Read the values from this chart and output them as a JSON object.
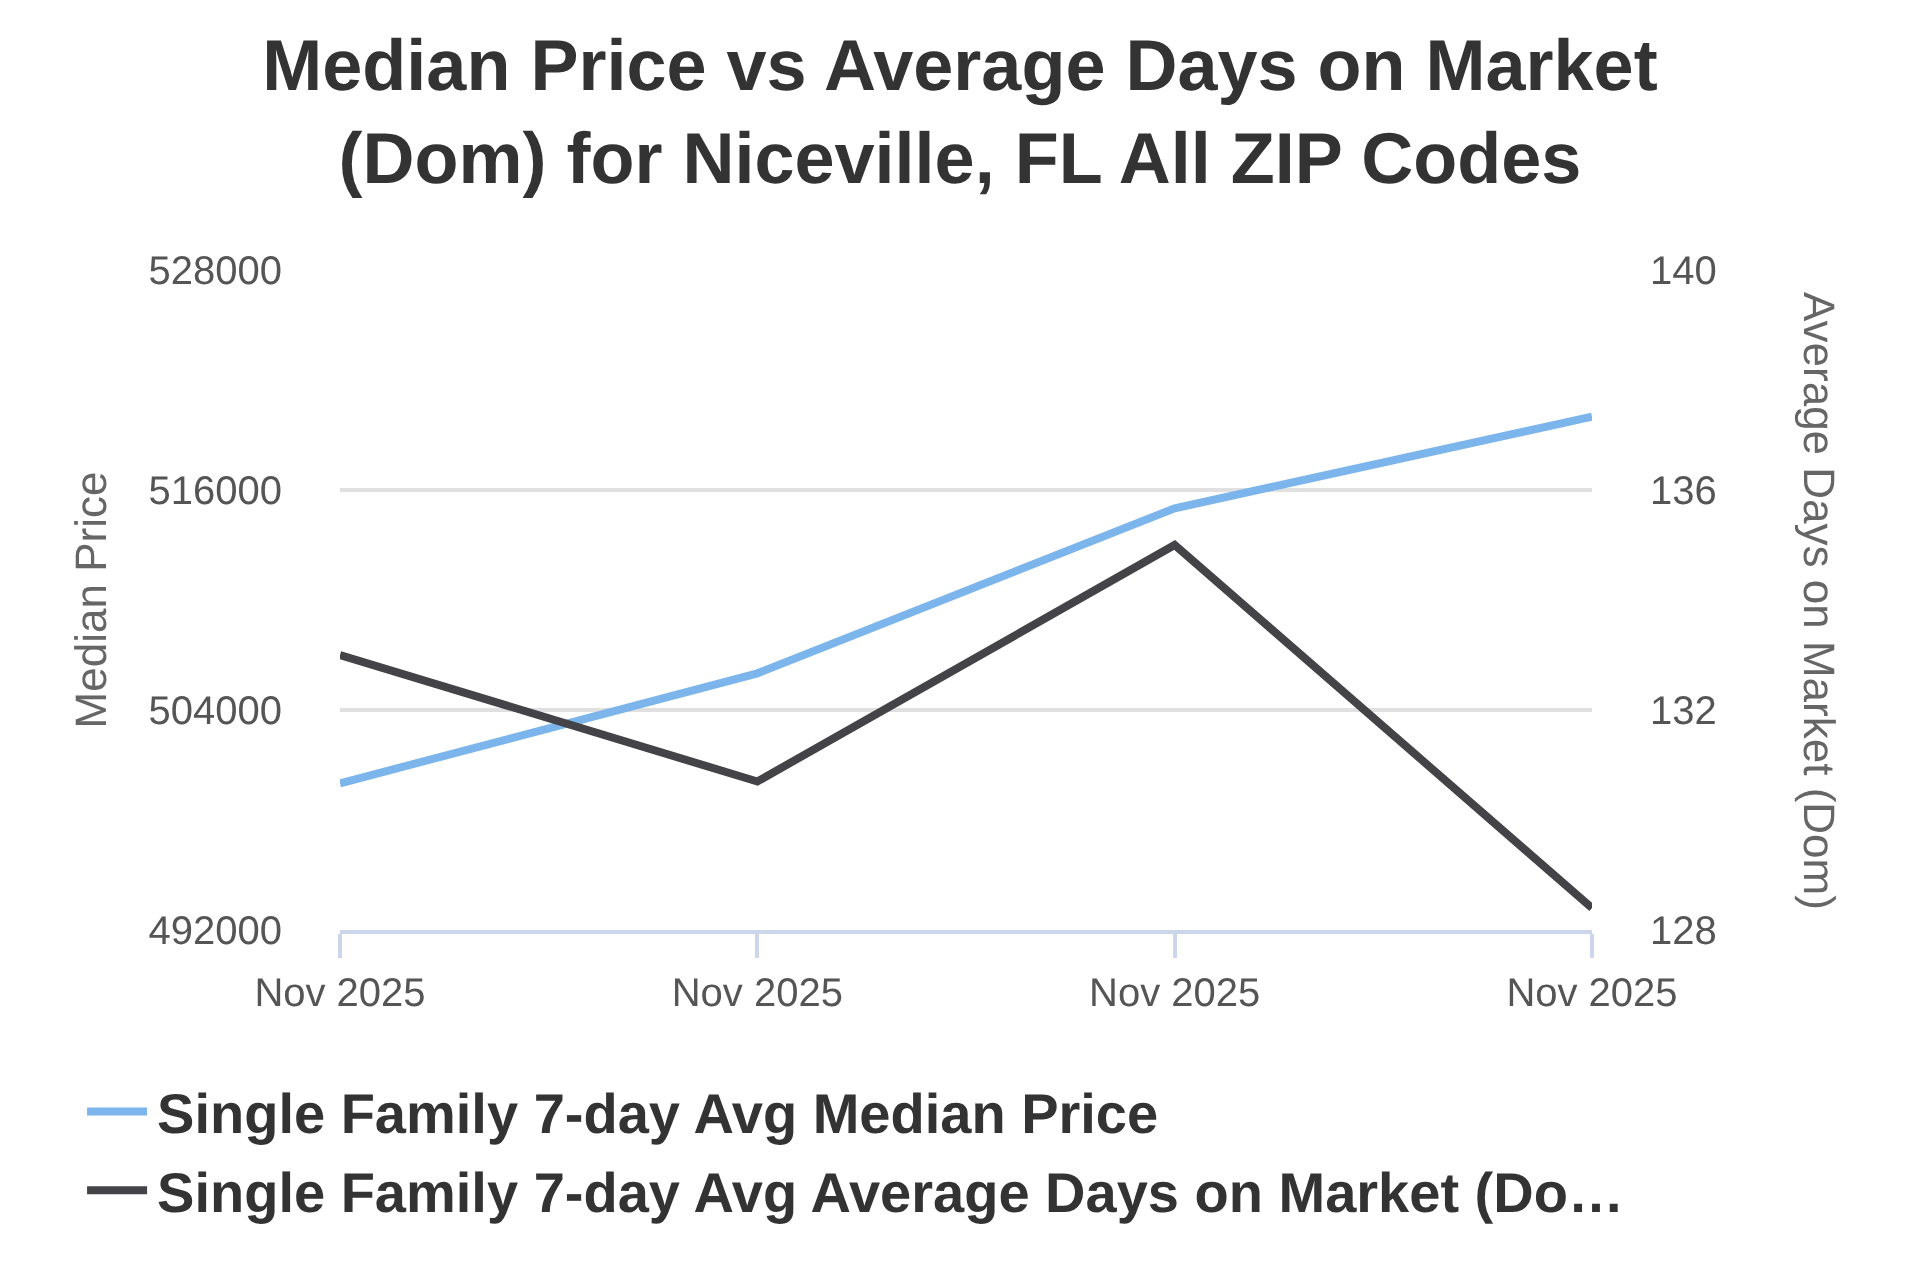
{
  "chart_data": {
    "type": "line",
    "title": "Median Price vs Average Days on Market (Dom) for Niceville, FL All ZIP Codes",
    "ylabel": "Median Price",
    "y2label": "Average Days on Market (Dom)",
    "categories": [
      "Nov 2025",
      "Nov 2025",
      "Nov 2025",
      "Nov 2025"
    ],
    "series": [
      {
        "name": "Single Family 7-day Avg Median Price",
        "color": "#7cb5ec",
        "values": [
          500000,
          506000,
          515000,
          520000
        ]
      },
      {
        "name": "Single Family 7-day Avg Average Days on Market (Do…",
        "color": "#434348",
        "values": [
          133,
          130.7,
          135,
          128.4
        ],
        "axis": "y2"
      }
    ],
    "ylim": [
      492000,
      528000
    ],
    "yticks": [
      492000,
      504000,
      516000,
      528000
    ],
    "y2lim": [
      128,
      140
    ],
    "y2ticks": [
      128,
      132,
      136,
      140
    ],
    "grid": "y",
    "legend": "bottom",
    "marker": "none",
    "line_style": "solid"
  }
}
